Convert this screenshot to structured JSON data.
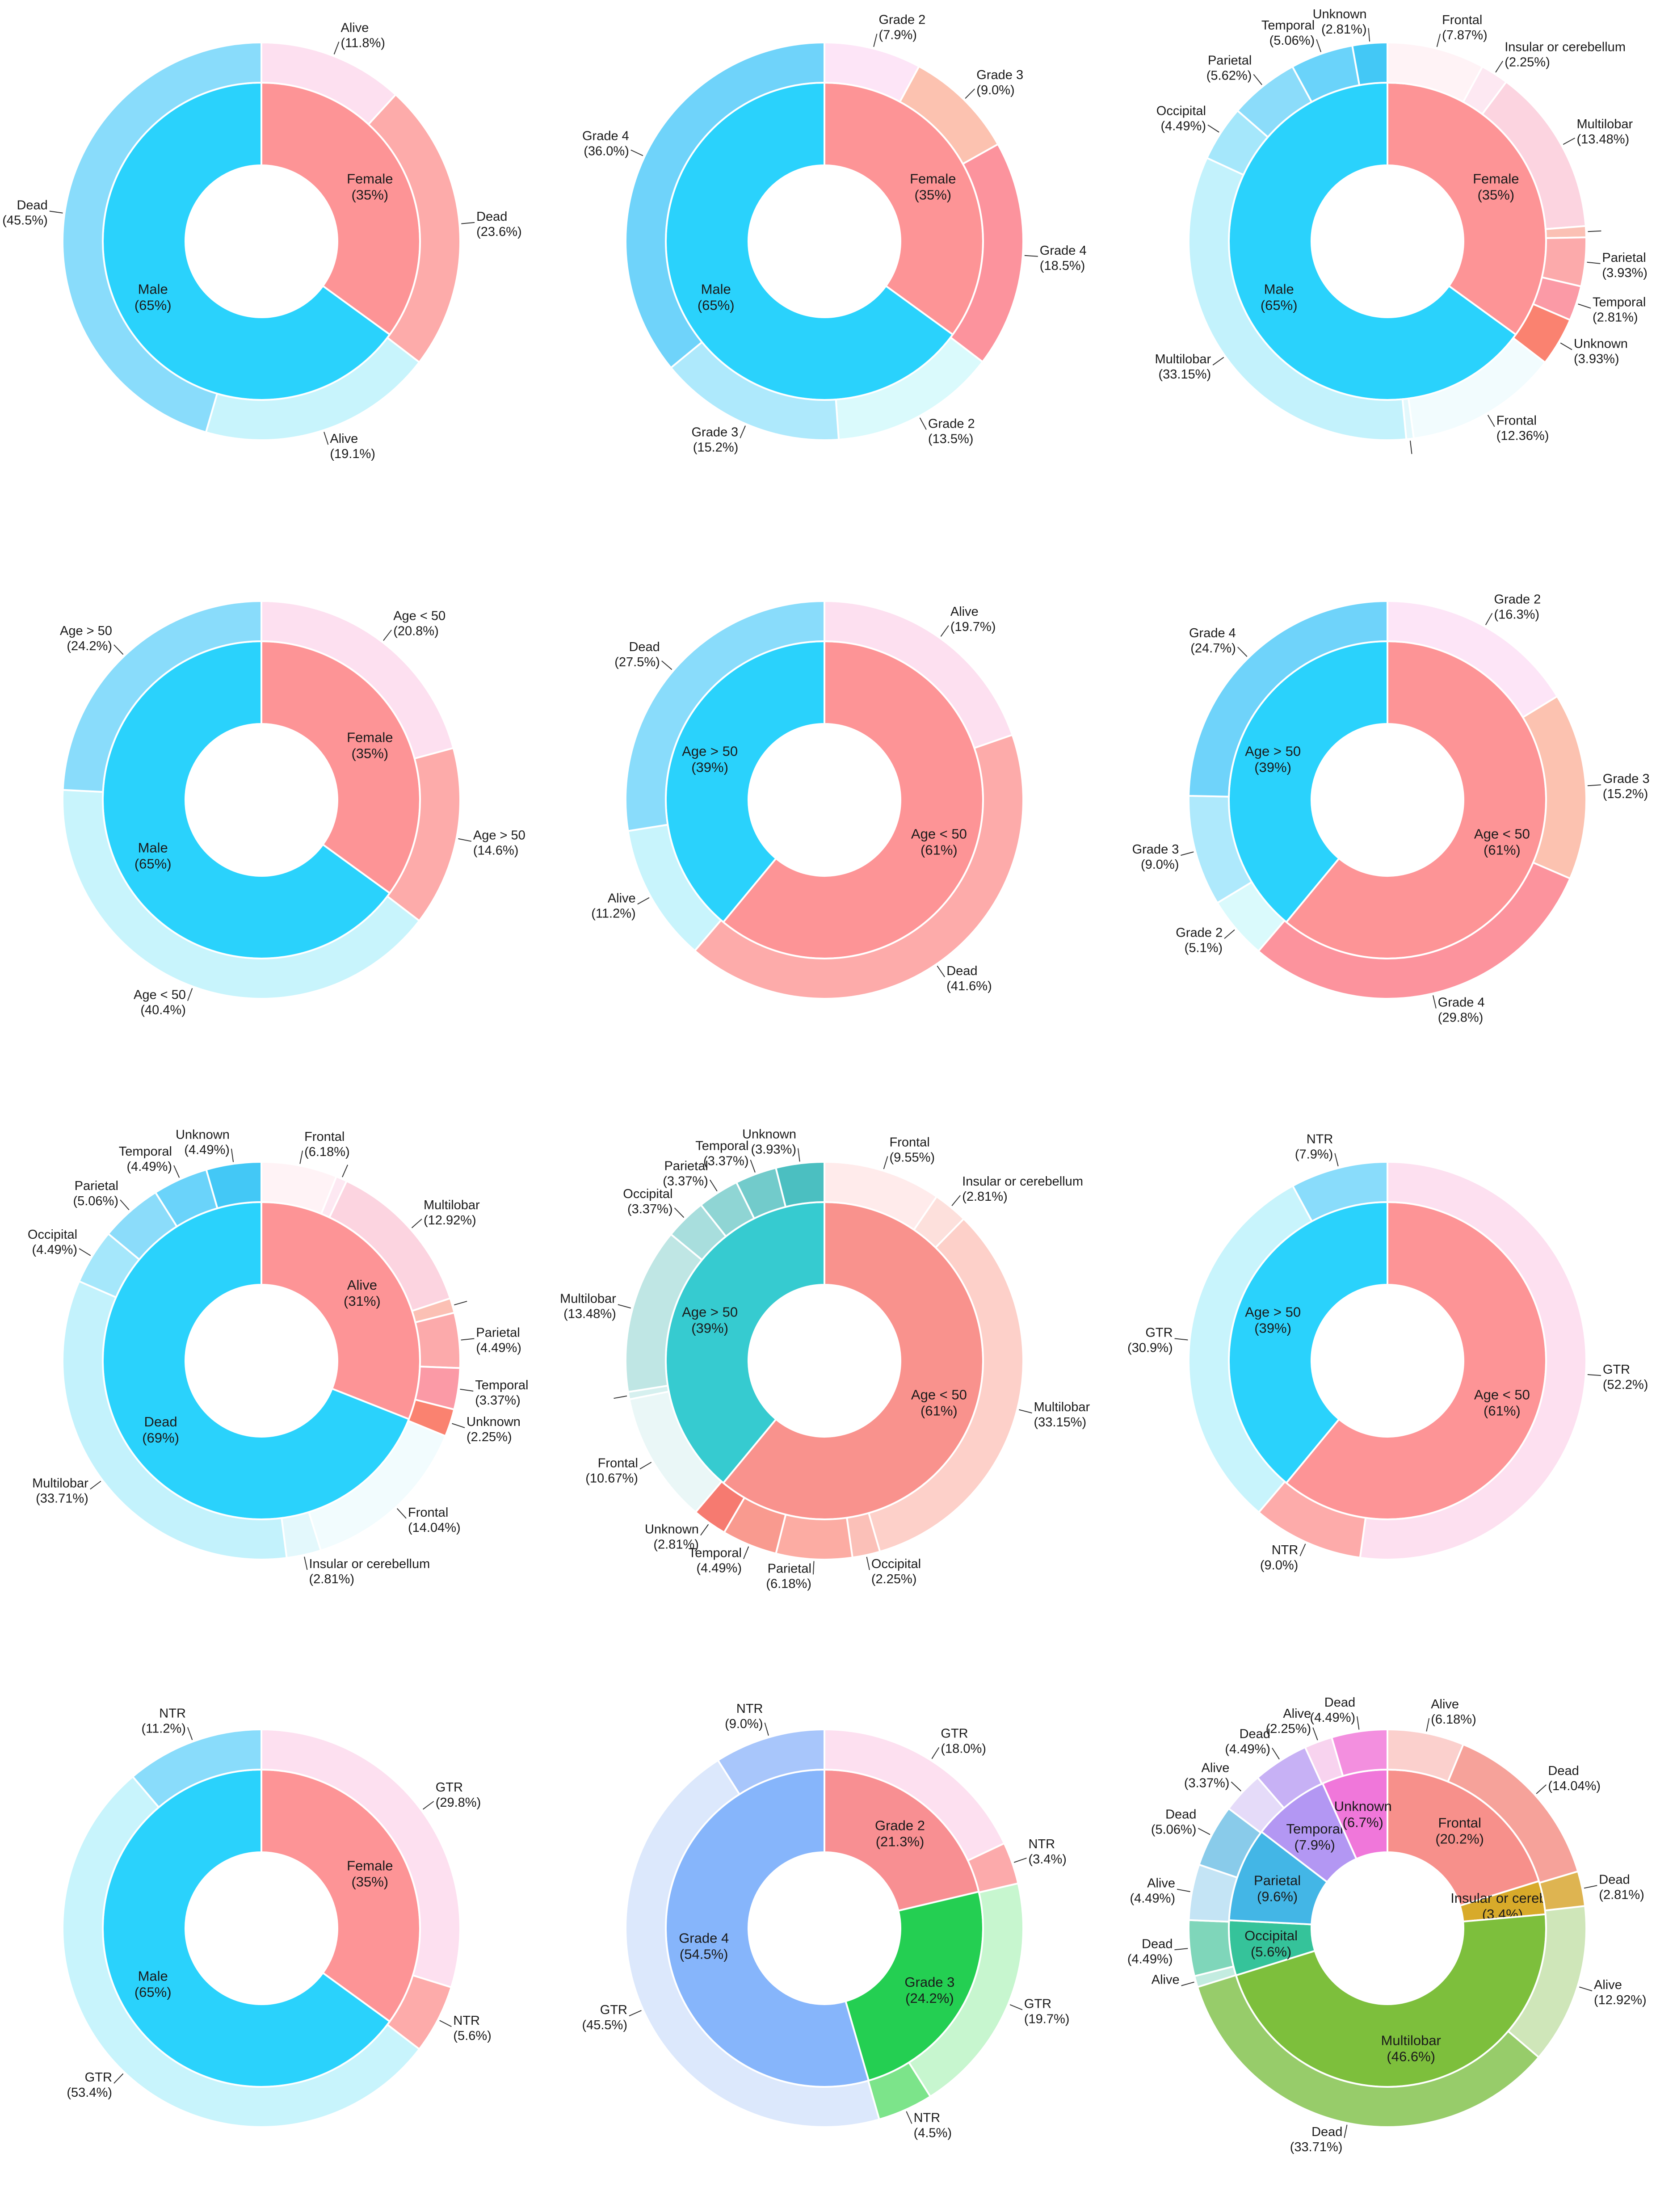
{
  "chart_data": [
    {
      "type": "pie",
      "title": "Gender vs survival",
      "inner": [
        {
          "label": "Female",
          "pct": "35%",
          "value": 35,
          "color": "#fd9496"
        },
        {
          "label": "Male",
          "pct": "65%",
          "value": 65,
          "color": "#2ad2fc"
        }
      ],
      "outer": [
        {
          "label": "Alive",
          "pct": "11.8%",
          "value": 11.8,
          "color": "#fde0f0"
        },
        {
          "label": "Dead",
          "pct": "23.6%",
          "value": 23.6,
          "color": "#fdabaa"
        },
        {
          "label": "Alive",
          "pct": "19.1%",
          "value": 19.1,
          "color": "#c8f4fc"
        },
        {
          "label": "Dead",
          "pct": "45.5%",
          "value": 45.5,
          "color": "#89dcfb"
        }
      ]
    },
    {
      "type": "pie",
      "title": "Gender vs grade",
      "inner": [
        {
          "label": "Female",
          "pct": "35%",
          "value": 35,
          "color": "#fd9496"
        },
        {
          "label": "Male",
          "pct": "65%",
          "value": 65,
          "color": "#2ad2fc"
        }
      ],
      "outer": [
        {
          "label": "Grade 2",
          "pct": "7.9%",
          "value": 7.9,
          "color": "#fde5f7"
        },
        {
          "label": "Grade 3",
          "pct": "9.0%",
          "value": 9.0,
          "color": "#fcc2b0"
        },
        {
          "label": "Grade 4",
          "pct": "18.5%",
          "value": 18.5,
          "color": "#fc939d"
        },
        {
          "label": "Grade 2",
          "pct": "13.5%",
          "value": 13.5,
          "color": "#dafafc"
        },
        {
          "label": "Grade 3",
          "pct": "15.2%",
          "value": 15.2,
          "color": "#aee9fc"
        },
        {
          "label": "Grade 4",
          "pct": "36.0%",
          "value": 36.0,
          "color": "#6fd3fa"
        }
      ]
    },
    {
      "type": "pie",
      "title": "Gender vs location",
      "inner": [
        {
          "label": "Female",
          "pct": "35%",
          "value": 35,
          "color": "#fd9496"
        },
        {
          "label": "Male",
          "pct": "65%",
          "value": 65,
          "color": "#2ad2fc"
        }
      ],
      "outer": [
        {
          "label": "Frontal",
          "pct": "7.87%",
          "value": 7.87,
          "color": "#fff3f6"
        },
        {
          "label": "Insular or cerebellum",
          "pct": "2.25%",
          "value": 2.25,
          "color": "#fde8f2"
        },
        {
          "label": "Multilobar",
          "pct": "13.48%",
          "value": 13.48,
          "color": "#fcd4e0"
        },
        {
          "label": "",
          "pct": "",
          "value": 0.9,
          "color": "#fbc0b4"
        },
        {
          "label": "Parietal",
          "pct": "3.93%",
          "value": 3.93,
          "color": "#fcaaab"
        },
        {
          "label": "Temporal",
          "pct": "2.81%",
          "value": 2.81,
          "color": "#fb9aa6"
        },
        {
          "label": "Unknown",
          "pct": "3.93%",
          "value": 3.93,
          "color": "#fa8270"
        },
        {
          "label": "Frontal",
          "pct": "12.36%",
          "value": 12.36,
          "color": "#f2fcfe"
        },
        {
          "label": "",
          "pct": "",
          "value": 0.6,
          "color": "#e3f8fc"
        },
        {
          "label": "Multilobar",
          "pct": "33.15%",
          "value": 33.15,
          "color": "#c3f2fc"
        },
        {
          "label": "Occipital",
          "pct": "4.49%",
          "value": 4.49,
          "color": "#a5e7fb"
        },
        {
          "label": "Parietal",
          "pct": "5.62%",
          "value": 5.62,
          "color": "#8bdcfa"
        },
        {
          "label": "Temporal",
          "pct": "5.06%",
          "value": 5.06,
          "color": "#6ad3fa"
        },
        {
          "label": "Unknown",
          "pct": "2.81%",
          "value": 2.81,
          "color": "#43c8f6"
        }
      ]
    },
    {
      "type": "pie",
      "title": "Gender vs age",
      "inner": [
        {
          "label": "Female",
          "pct": "35%",
          "value": 35,
          "color": "#fd9496"
        },
        {
          "label": "Male",
          "pct": "65%",
          "value": 65,
          "color": "#2ad2fc"
        }
      ],
      "outer": [
        {
          "label": "Age < 50",
          "pct": "20.8%",
          "value": 20.8,
          "color": "#fde0f0"
        },
        {
          "label": "Age > 50",
          "pct": "14.6%",
          "value": 14.6,
          "color": "#fdabaa"
        },
        {
          "label": "Age < 50",
          "pct": "40.4%",
          "value": 40.4,
          "color": "#c8f4fc"
        },
        {
          "label": "Age > 50",
          "pct": "24.2%",
          "value": 24.2,
          "color": "#89dcfb"
        }
      ]
    },
    {
      "type": "pie",
      "title": "Age vs survival",
      "inner": [
        {
          "label": "Age < 50",
          "pct": "61%",
          "value": 61,
          "color": "#fd9496"
        },
        {
          "label": "Age > 50",
          "pct": "39%",
          "value": 39,
          "color": "#2ad2fc"
        }
      ],
      "outer": [
        {
          "label": "Alive",
          "pct": "19.7%",
          "value": 19.7,
          "color": "#fde0f0"
        },
        {
          "label": "Dead",
          "pct": "41.6%",
          "value": 41.6,
          "color": "#fdabaa"
        },
        {
          "label": "Alive",
          "pct": "11.2%",
          "value": 11.2,
          "color": "#c8f4fc"
        },
        {
          "label": "Dead",
          "pct": "27.5%",
          "value": 27.5,
          "color": "#89dcfb"
        }
      ]
    },
    {
      "type": "pie",
      "title": "Age vs grade",
      "inner": [
        {
          "label": "Age < 50",
          "pct": "61%",
          "value": 61,
          "color": "#fd9496"
        },
        {
          "label": "Age > 50",
          "pct": "39%",
          "value": 39,
          "color": "#2ad2fc"
        }
      ],
      "outer": [
        {
          "label": "Grade 2",
          "pct": "16.3%",
          "value": 16.3,
          "color": "#fde5f7"
        },
        {
          "label": "Grade 3",
          "pct": "15.2%",
          "value": 15.2,
          "color": "#fcc2b0"
        },
        {
          "label": "Grade 4",
          "pct": "29.8%",
          "value": 29.8,
          "color": "#fc939d"
        },
        {
          "label": "Grade 2",
          "pct": "5.1%",
          "value": 5.1,
          "color": "#dafafc"
        },
        {
          "label": "Grade 3",
          "pct": "9.0%",
          "value": 9.0,
          "color": "#aee9fc"
        },
        {
          "label": "Grade 4",
          "pct": "24.7%",
          "value": 24.7,
          "color": "#6fd3fa"
        }
      ]
    },
    {
      "type": "pie",
      "title": "Survival vs location",
      "inner": [
        {
          "label": "Alive",
          "pct": "31%",
          "value": 31,
          "color": "#fd9496"
        },
        {
          "label": "Dead",
          "pct": "69%",
          "value": 69,
          "color": "#2ad2fc"
        }
      ],
      "outer": [
        {
          "label": "Frontal",
          "pct": "6.18%",
          "value": 6.18,
          "color": "#fff3f6"
        },
        {
          "label": "",
          "pct": "",
          "value": 0.9,
          "color": "#fde8f2"
        },
        {
          "label": "Multilobar",
          "pct": "12.92%",
          "value": 12.92,
          "color": "#fcd4e0"
        },
        {
          "label": "",
          "pct": "",
          "value": 1.2,
          "color": "#fbc0b4"
        },
        {
          "label": "Parietal",
          "pct": "4.49%",
          "value": 4.49,
          "color": "#fcaaab"
        },
        {
          "label": "Temporal",
          "pct": "3.37%",
          "value": 3.37,
          "color": "#fb9aa6"
        },
        {
          "label": "Unknown",
          "pct": "2.25%",
          "value": 2.25,
          "color": "#fa8270"
        },
        {
          "label": "Frontal",
          "pct": "14.04%",
          "value": 14.04,
          "color": "#f2fcfe"
        },
        {
          "label": "Insular or cerebellum",
          "pct": "2.81%",
          "value": 2.81,
          "color": "#e3f8fc"
        },
        {
          "label": "Multilobar",
          "pct": "33.71%",
          "value": 33.71,
          "color": "#c3f2fc"
        },
        {
          "label": "Occipital",
          "pct": "4.49%",
          "value": 4.49,
          "color": "#a5e7fb"
        },
        {
          "label": "Parietal",
          "pct": "5.06%",
          "value": 5.06,
          "color": "#8bdcfa"
        },
        {
          "label": "Temporal",
          "pct": "4.49%",
          "value": 4.49,
          "color": "#6ad3fa"
        },
        {
          "label": "Unknown",
          "pct": "4.49%",
          "value": 4.49,
          "color": "#43c8f6"
        }
      ]
    },
    {
      "type": "pie",
      "title": "Age vs location",
      "inner": [
        {
          "label": "Age < 50",
          "pct": "61%",
          "value": 61,
          "color": "#f9928d"
        },
        {
          "label": "Age > 50",
          "pct": "39%",
          "value": 39,
          "color": "#36cbd0"
        }
      ],
      "outer": [
        {
          "label": "Frontal",
          "pct": "9.55%",
          "value": 9.55,
          "color": "#ffebeb"
        },
        {
          "label": "Insular or cerebellum",
          "pct": "2.81%",
          "value": 2.81,
          "color": "#fde0dc"
        },
        {
          "label": "Multilobar",
          "pct": "33.15%",
          "value": 33.15,
          "color": "#fdd0c9"
        },
        {
          "label": "Occipital",
          "pct": "2.25%",
          "value": 2.25,
          "color": "#fbc0b8"
        },
        {
          "label": "Parietal",
          "pct": "6.18%",
          "value": 6.18,
          "color": "#fcaca3"
        },
        {
          "label": "Temporal",
          "pct": "4.49%",
          "value": 4.49,
          "color": "#f99a8f"
        },
        {
          "label": "Unknown",
          "pct": "2.81%",
          "value": 2.81,
          "color": "#f67a70"
        },
        {
          "label": "Frontal",
          "pct": "10.67%",
          "value": 10.67,
          "color": "#eaf7f7"
        },
        {
          "label": "",
          "pct": "",
          "value": 0.6,
          "color": "#d6f0ef"
        },
        {
          "label": "Multilobar",
          "pct": "13.48%",
          "value": 13.48,
          "color": "#bfe6e4"
        },
        {
          "label": "Occipital",
          "pct": "3.37%",
          "value": 3.37,
          "color": "#a8dedd"
        },
        {
          "label": "Parietal",
          "pct": "3.37%",
          "value": 3.37,
          "color": "#8fd5d4"
        },
        {
          "label": "Temporal",
          "pct": "3.37%",
          "value": 3.37,
          "color": "#72cbcb"
        },
        {
          "label": "Unknown",
          "pct": "3.93%",
          "value": 3.93,
          "color": "#4bbfc1"
        }
      ]
    },
    {
      "type": "pie",
      "title": "Age vs resection",
      "inner": [
        {
          "label": "Age < 50",
          "pct": "61%",
          "value": 61,
          "color": "#fd9496"
        },
        {
          "label": "Age > 50",
          "pct": "39%",
          "value": 39,
          "color": "#2ad2fc"
        }
      ],
      "outer": [
        {
          "label": "GTR",
          "pct": "52.2%",
          "value": 52.2,
          "color": "#fde0f0"
        },
        {
          "label": "NTR",
          "pct": "9.0%",
          "value": 9.0,
          "color": "#fdabaa"
        },
        {
          "label": "GTR",
          "pct": "30.9%",
          "value": 30.9,
          "color": "#c8f4fc"
        },
        {
          "label": "NTR",
          "pct": "7.9%",
          "value": 7.9,
          "color": "#89dcfb"
        }
      ]
    },
    {
      "type": "pie",
      "title": "Gender vs resection",
      "inner": [
        {
          "label": "Female",
          "pct": "35%",
          "value": 35,
          "color": "#fd9496"
        },
        {
          "label": "Male",
          "pct": "65%",
          "value": 65,
          "color": "#2ad2fc"
        }
      ],
      "outer": [
        {
          "label": "GTR",
          "pct": "29.8%",
          "value": 29.8,
          "color": "#fde0f0"
        },
        {
          "label": "NTR",
          "pct": "5.6%",
          "value": 5.6,
          "color": "#fdabaa"
        },
        {
          "label": "GTR",
          "pct": "53.4%",
          "value": 53.4,
          "color": "#c8f4fc"
        },
        {
          "label": "NTR",
          "pct": "11.2%",
          "value": 11.2,
          "color": "#89dcfb"
        }
      ]
    },
    {
      "type": "pie",
      "title": "Grade vs resection",
      "inner": [
        {
          "label": "Grade 2",
          "pct": "21.3%",
          "value": 21.3,
          "color": "#f88f92"
        },
        {
          "label": "Grade 3",
          "pct": "24.2%",
          "value": 24.2,
          "color": "#24cf52"
        },
        {
          "label": "Grade 4",
          "pct": "54.5%",
          "value": 54.5,
          "color": "#86b5fb"
        }
      ],
      "outer": [
        {
          "label": "GTR",
          "pct": "18.0%",
          "value": 18.0,
          "color": "#fde0f0"
        },
        {
          "label": "NTR",
          "pct": "3.4%",
          "value": 3.4,
          "color": "#fcaaab"
        },
        {
          "label": "GTR",
          "pct": "19.7%",
          "value": 19.7,
          "color": "#c7f6cf"
        },
        {
          "label": "NTR",
          "pct": "4.5%",
          "value": 4.5,
          "color": "#7ce48a"
        },
        {
          "label": "GTR",
          "pct": "45.5%",
          "value": 45.5,
          "color": "#dce8fc"
        },
        {
          "label": "NTR",
          "pct": "9.0%",
          "value": 9.0,
          "color": "#a8c6fb"
        }
      ]
    },
    {
      "type": "pie",
      "title": "Location vs survival",
      "inner": [
        {
          "label": "Frontal",
          "pct": "20.2%",
          "value": 20.2,
          "color": "#f7908b"
        },
        {
          "label": "Insular or cerebe",
          "pct": "3.4%",
          "value": 3.4,
          "color": "#d8aa2a"
        },
        {
          "label": "Multilobar",
          "pct": "46.6%",
          "value": 46.6,
          "color": "#7dbf3c"
        },
        {
          "label": "Occipital",
          "pct": "5.6%",
          "value": 5.6,
          "color": "#35c39a"
        },
        {
          "label": "Parietal",
          "pct": "9.6%",
          "value": 9.6,
          "color": "#43b6e6"
        },
        {
          "label": "Temporal",
          "pct": "7.9%",
          "value": 7.9,
          "color": "#b397f3"
        },
        {
          "label": "Unknown",
          "pct": "6.7%",
          "value": 6.7,
          "color": "#f077da"
        }
      ],
      "outer": [
        {
          "label": "Alive",
          "pct": "6.18%",
          "value": 6.18,
          "color": "#fbd0cd"
        },
        {
          "label": "Dead",
          "pct": "14.04%",
          "value": 14.04,
          "color": "#f6a29a"
        },
        {
          "label": "Dead",
          "pct": "2.81%",
          "value": 2.81,
          "color": "#deb451"
        },
        {
          "label": "Alive",
          "pct": "12.92%",
          "value": 12.92,
          "color": "#cfe6b9"
        },
        {
          "label": "Dead",
          "pct": "33.71%",
          "value": 33.71,
          "color": "#97cc6a"
        },
        {
          "label": "Alive",
          "pct": "",
          "value": 0.9,
          "color": "#c3ece0"
        },
        {
          "label": "Dead",
          "pct": "4.49%",
          "value": 4.49,
          "color": "#7fd6ba"
        },
        {
          "label": "Alive",
          "pct": "4.49%",
          "value": 4.49,
          "color": "#c4e4f5"
        },
        {
          "label": "Dead",
          "pct": "5.06%",
          "value": 5.06,
          "color": "#89cbea"
        },
        {
          "label": "Alive",
          "pct": "3.37%",
          "value": 3.37,
          "color": "#e5dbf9"
        },
        {
          "label": "Dead",
          "pct": "4.49%",
          "value": 4.49,
          "color": "#c7b1f5"
        },
        {
          "label": "Alive",
          "pct": "2.25%",
          "value": 2.25,
          "color": "#f8d3ef"
        },
        {
          "label": "Dead",
          "pct": "4.49%",
          "value": 4.49,
          "color": "#f38fdf"
        }
      ]
    }
  ]
}
